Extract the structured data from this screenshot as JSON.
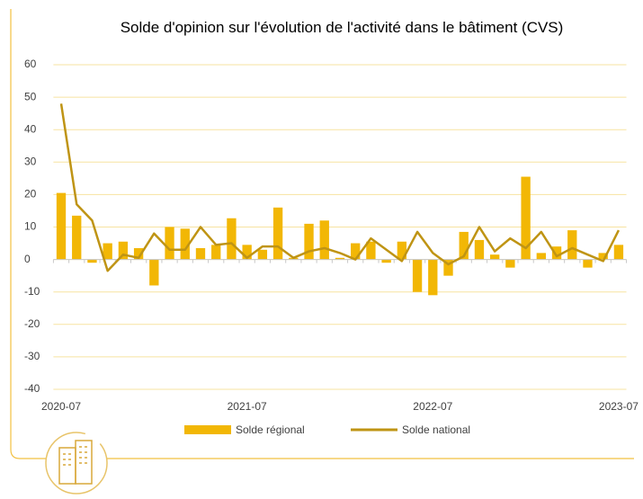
{
  "chart_data": {
    "type": "bar_line",
    "title": "Solde d'opinion sur l'évolution de l'activité dans le bâtiment (CVS)",
    "categories": [
      "2020-07",
      null,
      null,
      null,
      null,
      null,
      null,
      null,
      null,
      null,
      null,
      null,
      "2021-07",
      null,
      null,
      null,
      null,
      null,
      null,
      null,
      null,
      null,
      null,
      null,
      "2022-07",
      null,
      null,
      null,
      null,
      null,
      null,
      null,
      null,
      null,
      null,
      null,
      "2023-07"
    ],
    "series": [
      {
        "name": "Solde régional",
        "type": "bar",
        "color": "#f2b705",
        "values": [
          20.5,
          13.5,
          -1,
          5,
          5.5,
          3.5,
          -8,
          10,
          9.5,
          3.5,
          4.5,
          12.7,
          4.5,
          3,
          16,
          0.5,
          11,
          12,
          0.5,
          5,
          5.5,
          -1,
          5.5,
          -10,
          -11,
          -5,
          8.5,
          6,
          1.5,
          -2.5,
          25.5,
          2,
          4,
          9,
          -2.5,
          2,
          4.5
        ]
      },
      {
        "name": "Solde national",
        "type": "line",
        "color": "#bf9414",
        "values": [
          48,
          17,
          12,
          -3.5,
          1.5,
          0.5,
          8,
          3,
          3,
          10,
          4.5,
          5,
          0.5,
          4,
          4,
          0.5,
          2.5,
          3.5,
          2,
          0,
          6.5,
          3,
          -0.5,
          8.5,
          2,
          -1.5,
          1,
          10,
          2.5,
          6.5,
          3.5,
          8.5,
          1,
          3.5,
          1.5,
          -0.5,
          9
        ]
      }
    ],
    "ylim": [
      -40,
      60
    ],
    "yticks": [
      -40,
      -30,
      -20,
      -10,
      0,
      10,
      20,
      30,
      40,
      50,
      60
    ],
    "grid": true,
    "legend": "bottom"
  }
}
